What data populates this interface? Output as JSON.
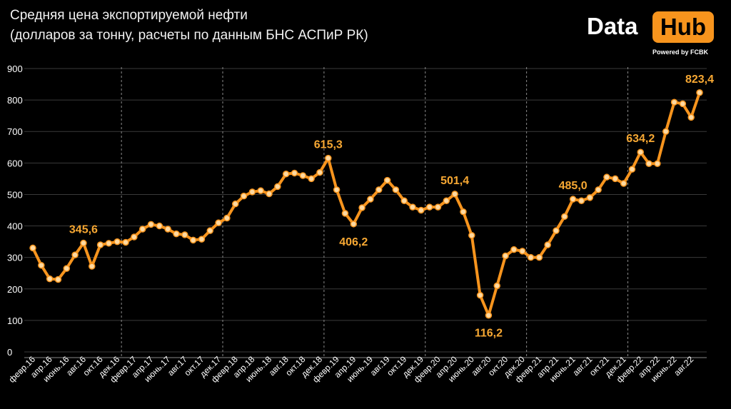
{
  "header": {
    "title": "Средняя цена экспортируемой нефти",
    "subtitle": "(долларов за тонну, расчеты по данным БНС АСПиР РК)"
  },
  "logo": {
    "text": "Data",
    "badge": "Hub",
    "powered": "Powered by FCBK"
  },
  "colors": {
    "background": "#000000",
    "line": "#f7941d",
    "marker_fill": "#ffd9a0",
    "label": "#f7a833",
    "grid": "#3a3a3a",
    "separator": "#8a8a8a",
    "text": "#ffffff"
  },
  "chart_data": {
    "type": "line",
    "title": "Средняя цена экспортируемой нефти",
    "subtitle": "(долларов за тонну, расчеты по данным БНС АСПиР РК)",
    "xlabel": "",
    "ylabel": "",
    "ylim": [
      0,
      900
    ],
    "yticks": [
      0,
      100,
      200,
      300,
      400,
      500,
      600,
      700,
      800,
      900
    ],
    "grid": true,
    "legend": "none",
    "x_tick_labels": [
      "февр.16",
      "апр.16",
      "июнь.16",
      "авг.16",
      "окт.16",
      "дек.16",
      "февр.17",
      "апр.17",
      "июнь.17",
      "авг.17",
      "окт.17",
      "дек.17",
      "февр.18",
      "апр.18",
      "июнь.18",
      "авг.18",
      "окт.18",
      "дек.18",
      "февр.19",
      "апр.19",
      "июнь.19",
      "авг.19",
      "окт.19",
      "дек.19",
      "февр.20",
      "апр.20",
      "июнь.20",
      "авг.20",
      "окт.20",
      "дек.20",
      "февр.21",
      "апр.21",
      "июнь.21",
      "авг.21",
      "окт.21",
      "дек.21",
      "февр.22",
      "апр.22",
      "июнь.22",
      "авг.22"
    ],
    "year_separators_after": [
      "дек.16",
      "дек.17",
      "дек.18",
      "дек.19",
      "дек.20",
      "дек.21"
    ],
    "series": [
      {
        "values": [
          330,
          275,
          232,
          230,
          265,
          308,
          345.6,
          272,
          340,
          345,
          350,
          348,
          365,
          390,
          405,
          400,
          390,
          375,
          372,
          355,
          358,
          385,
          410,
          425,
          470,
          495,
          508,
          512,
          502,
          525,
          565,
          568,
          560,
          550,
          570,
          615.3,
          515,
          440,
          406.2,
          458,
          485,
          515,
          545,
          515,
          480,
          460,
          450,
          460,
          460,
          480,
          501.4,
          445,
          370,
          180,
          116.2,
          210,
          305,
          325,
          320,
          300,
          300,
          340,
          385,
          430,
          485,
          480,
          490,
          515,
          555,
          550,
          535,
          580,
          634.2,
          598,
          598,
          700,
          793,
          788,
          745,
          823.4
        ]
      }
    ],
    "data_labels": [
      {
        "index": 6,
        "text": "345,6"
      },
      {
        "index": 35,
        "text": "615,3"
      },
      {
        "index": 38,
        "text": "406,2"
      },
      {
        "index": 50,
        "text": "501,4"
      },
      {
        "index": 54,
        "text": "116,2"
      },
      {
        "index": 64,
        "text": "485,0"
      },
      {
        "index": 72,
        "text": "634,2"
      },
      {
        "index": 79,
        "text": "823,4"
      }
    ]
  }
}
